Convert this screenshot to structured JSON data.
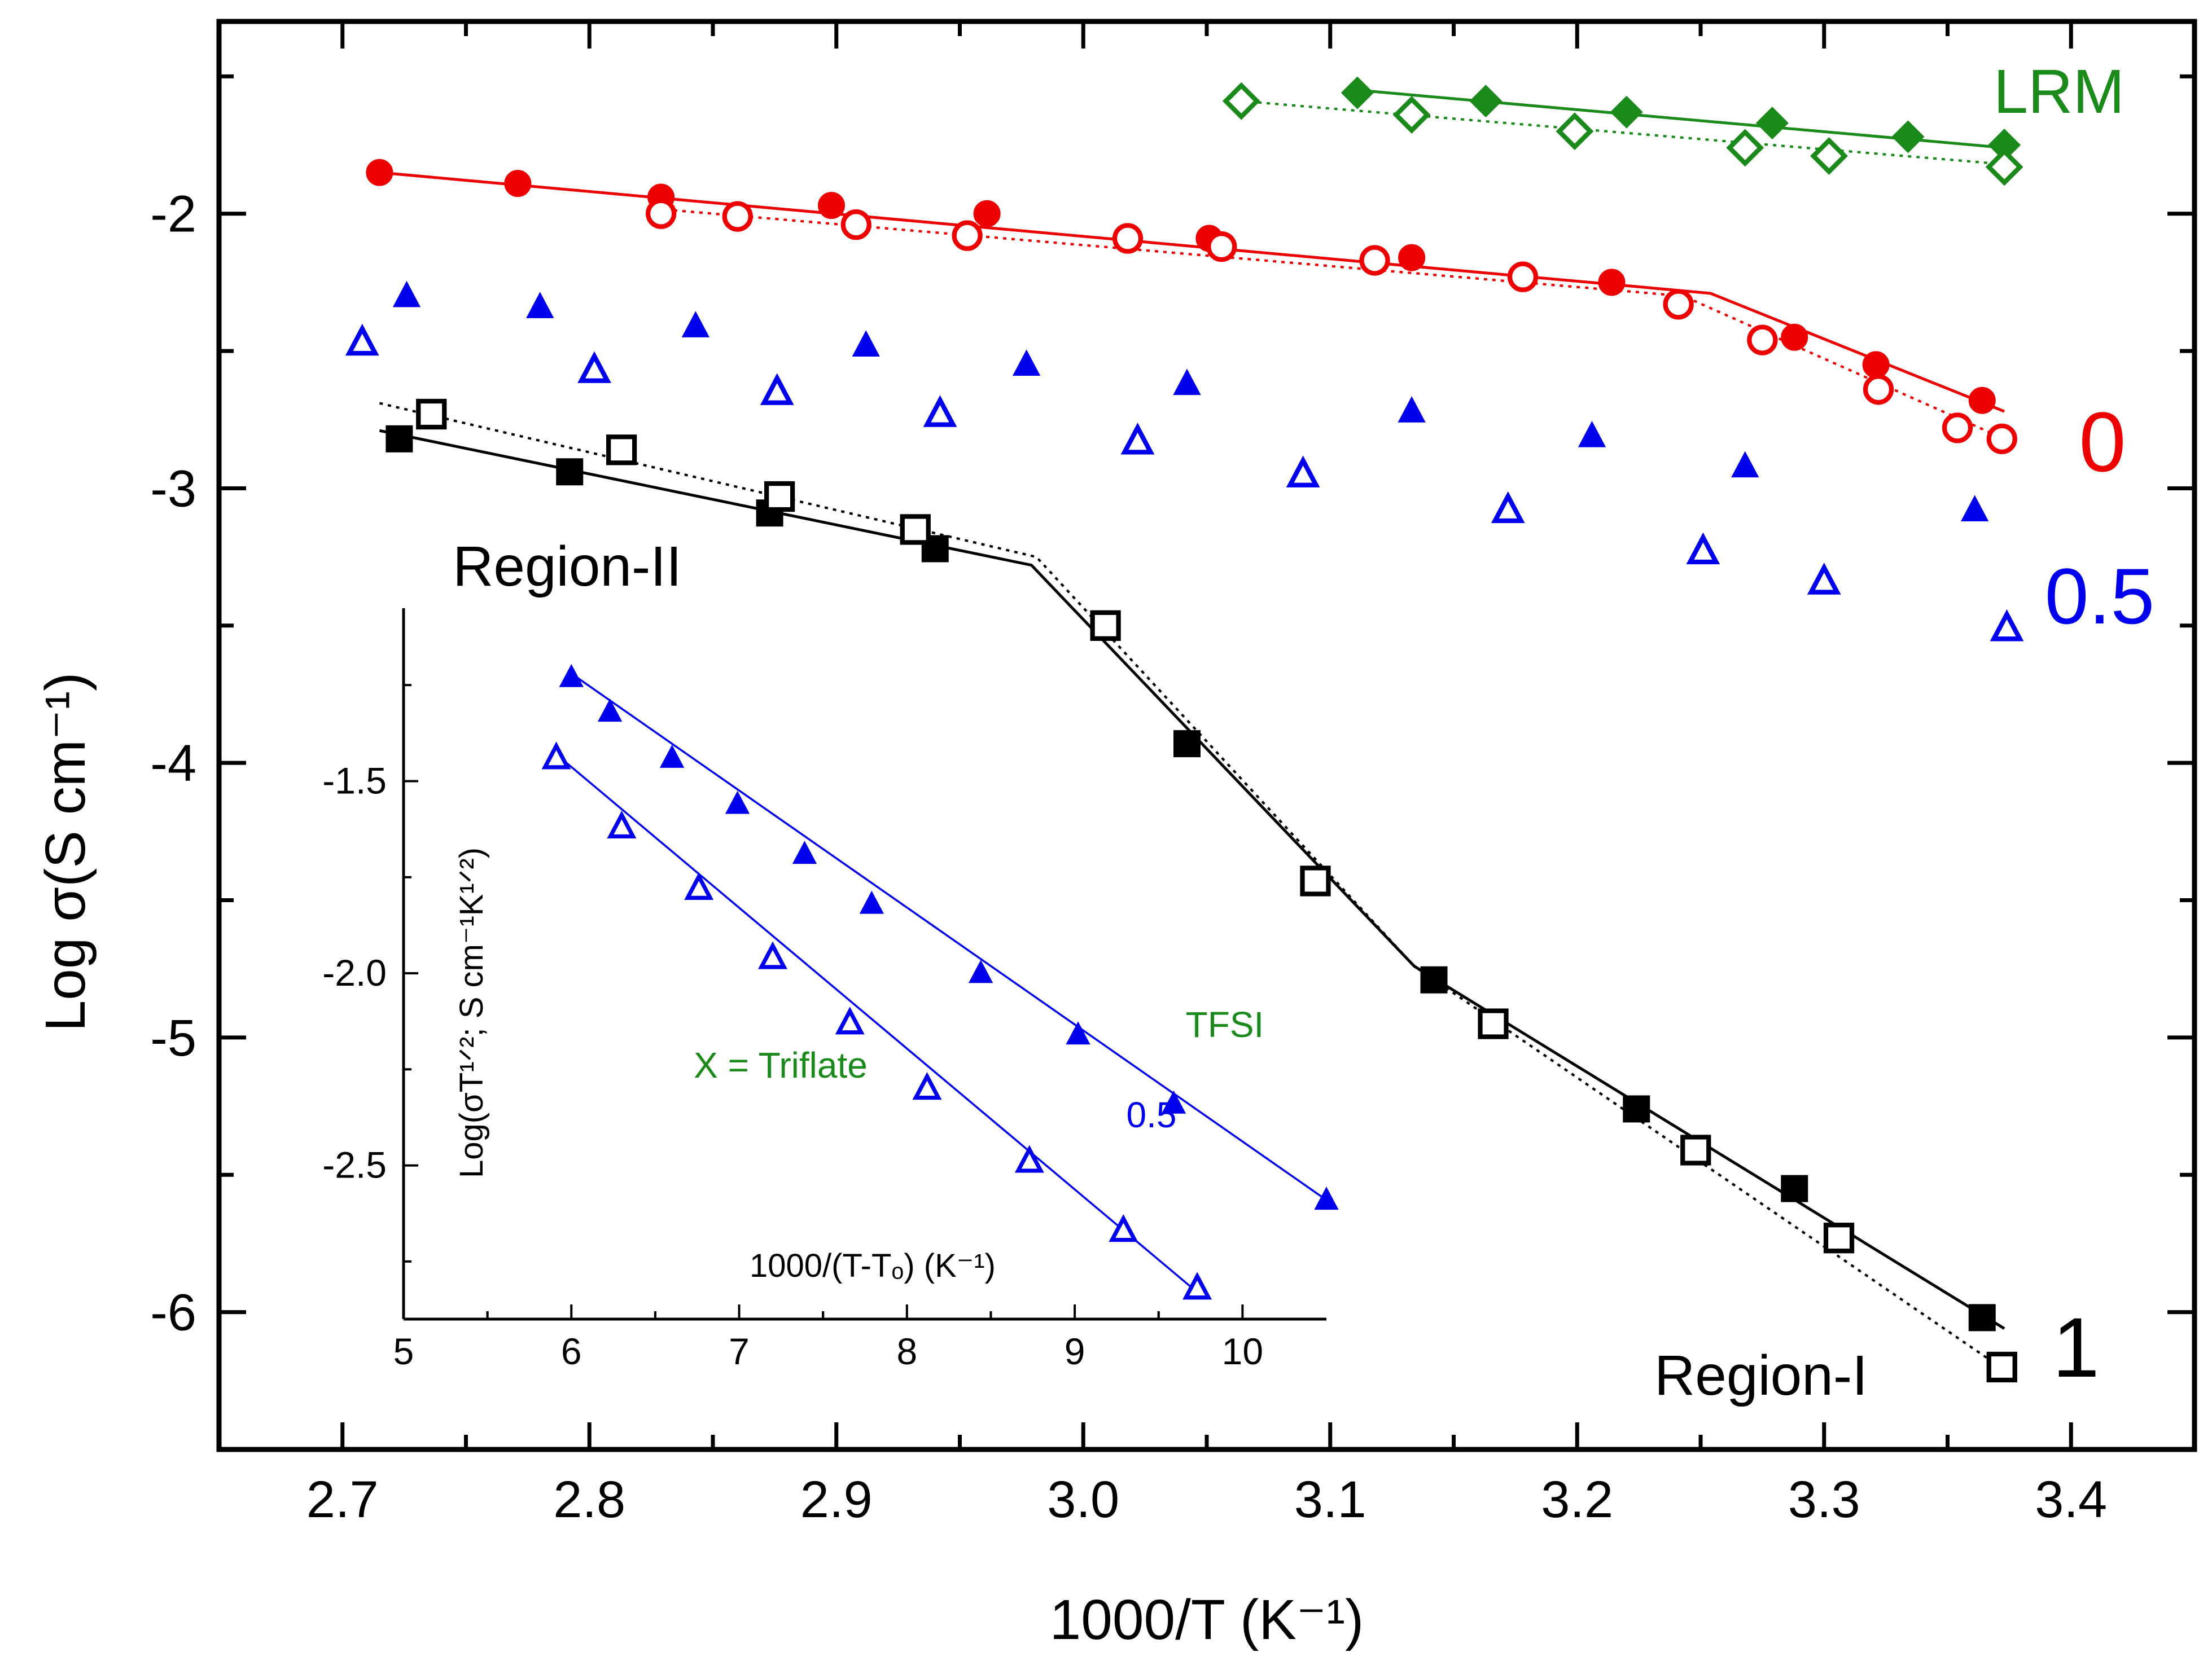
{
  "chart_data": [
    {
      "type": "scatter",
      "title": "",
      "xlabel": "1000/T (K⁻¹)",
      "ylabel": "Log σ(S cm⁻¹)",
      "xlim": [
        2.65,
        3.45
      ],
      "ylim": [
        -6.5,
        -1.3
      ],
      "xticks": [
        "2.7",
        "2.8",
        "2.9",
        "3.0",
        "3.1",
        "3.2",
        "3.3",
        "3.4"
      ],
      "yticks": [
        "-2",
        "-3",
        "-4",
        "-5",
        "-6"
      ],
      "grid": false,
      "colors": {
        "1": "#000000",
        "0.5": "#0000ee",
        "0": "#ee0000",
        "LRM": "#1a8a1a"
      },
      "series": [
        {
          "label": "LRM",
          "color": "#1a8a1a",
          "marker": "diamond",
          "filled": true,
          "fit": "solid",
          "x": [
            3.111,
            3.163,
            3.22,
            3.279,
            3.334,
            3.373
          ],
          "y": [
            -1.56,
            -1.59,
            -1.63,
            -1.67,
            -1.72,
            -1.75
          ]
        },
        {
          "label": "LRM",
          "color": "#1a8a1a",
          "marker": "diamond",
          "filled": false,
          "fit": "dotted",
          "x": [
            3.064,
            3.133,
            3.199,
            3.268,
            3.302,
            3.373
          ],
          "y": [
            -1.59,
            -1.64,
            -1.7,
            -1.76,
            -1.79,
            -1.83
          ]
        },
        {
          "label": "0",
          "color": "#ee0000",
          "marker": "circle",
          "filled": true,
          "fit": "solid",
          "x": [
            2.715,
            2.771,
            2.829,
            2.898,
            2.961,
            3.051,
            3.133,
            3.214,
            3.288,
            3.321,
            3.364
          ],
          "y": [
            -1.85,
            -1.89,
            -1.94,
            -1.97,
            -2.0,
            -2.09,
            -2.16,
            -2.25,
            -2.45,
            -2.55,
            -2.68
          ]
        },
        {
          "label": "0",
          "color": "#ee0000",
          "marker": "circle",
          "filled": false,
          "fit": "dotted",
          "x": [
            2.829,
            2.86,
            2.908,
            2.953,
            3.018,
            3.056,
            3.118,
            3.178,
            3.241,
            3.275,
            3.322,
            3.354,
            3.372
          ],
          "y": [
            -2.0,
            -2.01,
            -2.04,
            -2.08,
            -2.09,
            -2.12,
            -2.17,
            -2.23,
            -2.33,
            -2.46,
            -2.64,
            -2.78,
            -2.82
          ]
        },
        {
          "label": "0.5",
          "color": "#0000ee",
          "marker": "triangle",
          "filled": true,
          "fit": "none",
          "x": [
            2.726,
            2.78,
            2.843,
            2.912,
            2.977,
            3.042,
            3.133,
            3.206,
            3.268,
            3.361
          ],
          "y": [
            -2.3,
            -2.34,
            -2.41,
            -2.48,
            -2.55,
            -2.62,
            -2.72,
            -2.81,
            -2.92,
            -3.08
          ]
        },
        {
          "label": "0.5",
          "color": "#0000ee",
          "marker": "triangle",
          "filled": false,
          "fit": "none",
          "x": [
            2.708,
            2.802,
            2.876,
            2.942,
            3.022,
            3.089,
            3.172,
            3.251,
            3.3,
            3.374
          ],
          "y": [
            -2.47,
            -2.57,
            -2.65,
            -2.73,
            -2.83,
            -2.95,
            -3.08,
            -3.23,
            -3.34,
            -3.51
          ]
        },
        {
          "label": "1",
          "color": "#000000",
          "marker": "square",
          "filled": true,
          "fit": "solid",
          "x": [
            2.723,
            2.792,
            2.873,
            2.94,
            3.042,
            3.142,
            3.224,
            3.288,
            3.364
          ],
          "y": [
            -2.82,
            -2.94,
            -3.09,
            -3.22,
            -3.93,
            -4.79,
            -5.26,
            -5.55,
            -6.02
          ]
        },
        {
          "label": "1",
          "color": "#000000",
          "marker": "square",
          "filled": false,
          "fit": "dotted",
          "x": [
            2.736,
            2.813,
            2.877,
            2.932,
            3.009,
            3.094,
            3.166,
            3.248,
            3.306,
            3.372
          ],
          "y": [
            -2.73,
            -2.86,
            -3.03,
            -3.15,
            -3.5,
            -4.43,
            -4.95,
            -5.41,
            -5.73,
            -6.2
          ]
        }
      ],
      "fit_lines": [
        {
          "color": "#1a8a1a",
          "style": "solid",
          "x": [
            3.111,
            3.373
          ],
          "y": [
            -1.55,
            -1.76
          ]
        },
        {
          "color": "#1a8a1a",
          "style": "dotted",
          "x": [
            3.064,
            3.373
          ],
          "y": [
            -1.59,
            -1.82
          ]
        },
        {
          "color": "#ee0000",
          "style": "solid",
          "x": [
            2.715,
            3.254,
            3.373
          ],
          "y": [
            -1.85,
            -2.29,
            -2.72
          ]
        },
        {
          "color": "#ee0000",
          "style": "dotted",
          "x": [
            2.824,
            3.243,
            3.373
          ],
          "y": [
            -1.98,
            -2.3,
            -2.82
          ]
        },
        {
          "color": "#000000",
          "style": "solid",
          "x": [
            2.715,
            2.979,
            3.134,
            3.373
          ],
          "y": [
            -2.79,
            -3.28,
            -4.74,
            -6.06
          ]
        },
        {
          "color": "#000000",
          "style": "dotted",
          "x": [
            2.715,
            2.981,
            3.134,
            3.373
          ],
          "y": [
            -2.69,
            -3.25,
            -4.74,
            -6.21
          ]
        }
      ],
      "annotations": [
        {
          "text": "LRM",
          "color": "#1a8a1a"
        },
        {
          "text": "0",
          "color": "#ee0000"
        },
        {
          "text": "0.5",
          "color": "#0000ee"
        },
        {
          "text": "1",
          "color": "#000000"
        },
        {
          "text": "Region-II",
          "color": "#000000"
        },
        {
          "text": "Region-I",
          "color": "#000000"
        }
      ]
    },
    {
      "type": "scatter",
      "title": "",
      "xlabel": "1000/(T-Tₒ) (K⁻¹)",
      "ylabel": "Log(σT¹ᐟ²; S cm⁻¹K¹ᐟ²)",
      "xlim": [
        5,
        10.5
      ],
      "ylim": [
        -2.9,
        -1.05
      ],
      "xticks": [
        "5",
        "6",
        "7",
        "8",
        "9",
        "10"
      ],
      "yticks": [
        "-1.5",
        "-2.0",
        "-2.5"
      ],
      "grid": false,
      "series": [
        {
          "label": "TFSI",
          "color": "#0000ee",
          "marker": "triangle",
          "filled": true,
          "fit": "solid",
          "x": [
            6.0,
            6.23,
            6.6,
            6.99,
            7.39,
            7.79,
            8.44,
            9.02,
            9.59,
            10.5
          ],
          "y": [
            -1.23,
            -1.32,
            -1.44,
            -1.56,
            -1.69,
            -1.82,
            -2.0,
            -2.16,
            -2.34,
            -2.59
          ]
        },
        {
          "label": "X = Triflate",
          "color": "#0000ee",
          "marker": "triangle",
          "filled": false,
          "fit": "solid",
          "x": [
            5.91,
            6.3,
            6.76,
            7.2,
            7.66,
            8.12,
            8.73,
            9.29,
            9.73
          ],
          "y": [
            -1.44,
            -1.62,
            -1.78,
            -1.96,
            -2.13,
            -2.3,
            -2.49,
            -2.67,
            -2.82
          ]
        }
      ],
      "fit_lines": [
        {
          "color": "#0000ee",
          "style": "solid",
          "x": [
            6.0,
            10.5
          ],
          "y": [
            -1.22,
            -2.59
          ]
        },
        {
          "color": "#0000ee",
          "style": "solid",
          "x": [
            5.91,
            9.73
          ],
          "y": [
            -1.43,
            -2.83
          ]
        }
      ],
      "annotations": [
        {
          "text": "TFSI",
          "color": "#1a8a1a"
        },
        {
          "text": "X = Triflate",
          "color": "#1a8a1a"
        },
        {
          "text": "0.5",
          "color": "#0000ee"
        }
      ]
    }
  ]
}
